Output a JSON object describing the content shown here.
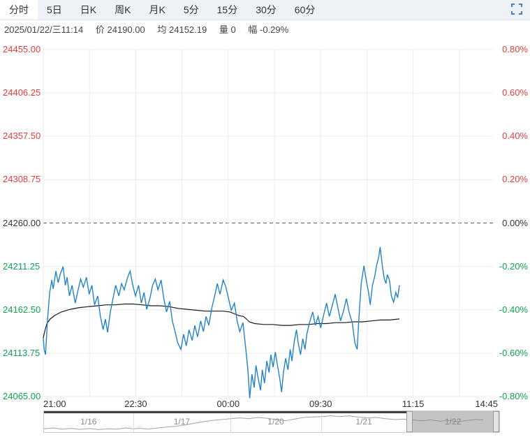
{
  "colors": {
    "up": "#e23e3e",
    "down": "#0fa352",
    "flat": "#333333",
    "price_line": "#2383c4",
    "avg_line": "#1a1a1a",
    "accent_blue": "#4b7cc8"
  },
  "tabs": {
    "items": [
      {
        "label": "分时",
        "name": "tab-time-share",
        "active": true
      },
      {
        "label": "5日",
        "name": "tab-5-day",
        "active": false
      },
      {
        "label": "日K",
        "name": "tab-daily-k",
        "active": false
      },
      {
        "label": "周K",
        "name": "tab-weekly-k",
        "active": false
      },
      {
        "label": "月K",
        "name": "tab-monthly-k",
        "active": false
      },
      {
        "label": "5分",
        "name": "tab-5-min",
        "active": false
      },
      {
        "label": "15分",
        "name": "tab-15-min",
        "active": false
      },
      {
        "label": "30分",
        "name": "tab-30-min",
        "active": false
      },
      {
        "label": "60分",
        "name": "tab-60-min",
        "active": false
      }
    ]
  },
  "info_bar": {
    "datetime": "2025/01/22/三11:14",
    "price_label": "价",
    "price": "24190.00",
    "avg_label": "均",
    "avg": "24152.19",
    "vol_label": "量",
    "vol": "0",
    "chg_label": "幅",
    "chg": "-0.29%"
  },
  "chart_data": {
    "type": "line",
    "title": "分时走势",
    "ylim": [
      24065,
      24455
    ],
    "pct_lim": [
      -0.8,
      0.8
    ],
    "zero_price": 24260,
    "grid": true,
    "left_axis": [
      {
        "label": "24455.00",
        "tone": "up"
      },
      {
        "label": "24406.25",
        "tone": "up"
      },
      {
        "label": "24357.50",
        "tone": "up"
      },
      {
        "label": "24308.75",
        "tone": "up"
      },
      {
        "label": "24260.00",
        "tone": "flat"
      },
      {
        "label": "24211.25",
        "tone": "down"
      },
      {
        "label": "24162.50",
        "tone": "down"
      },
      {
        "label": "24113.75",
        "tone": "down"
      },
      {
        "label": "24065.00",
        "tone": "down"
      }
    ],
    "right_axis": [
      {
        "label": "0.80%",
        "tone": "up"
      },
      {
        "label": "0.60%",
        "tone": "up"
      },
      {
        "label": "0.40%",
        "tone": "up"
      },
      {
        "label": "0.20%",
        "tone": "up"
      },
      {
        "label": "0.00%",
        "tone": "flat"
      },
      {
        "label": "-0.20%",
        "tone": "down"
      },
      {
        "label": "-0.40%",
        "tone": "down"
      },
      {
        "label": "-0.60%",
        "tone": "down"
      },
      {
        "label": "-0.80%",
        "tone": "down"
      }
    ],
    "x_ticks": [
      {
        "label": "21:00",
        "pos": 0.0,
        "align": "left"
      },
      {
        "label": "22:30",
        "pos": 0.2056,
        "align": "center"
      },
      {
        "label": "00:00",
        "pos": 0.4112,
        "align": "center"
      },
      {
        "label": "09:30",
        "pos": 0.6168,
        "align": "center"
      },
      {
        "label": "11:15",
        "pos": 0.8224,
        "align": "center"
      },
      {
        "label": "14:45",
        "pos": 1.0,
        "align": "right"
      }
    ],
    "series": [
      {
        "name": "price",
        "color": "#2383c4",
        "points": [
          [
            0.0,
            24131
          ],
          [
            0.002,
            24118
          ],
          [
            0.005,
            24112
          ],
          [
            0.009,
            24148
          ],
          [
            0.014,
            24181
          ],
          [
            0.019,
            24196
          ],
          [
            0.022,
            24186
          ],
          [
            0.028,
            24206
          ],
          [
            0.033,
            24193
          ],
          [
            0.038,
            24203
          ],
          [
            0.044,
            24211
          ],
          [
            0.049,
            24190
          ],
          [
            0.053,
            24199
          ],
          [
            0.058,
            24178
          ],
          [
            0.064,
            24190
          ],
          [
            0.071,
            24170
          ],
          [
            0.077,
            24184
          ],
          [
            0.083,
            24197
          ],
          [
            0.089,
            24188
          ],
          [
            0.096,
            24199
          ],
          [
            0.102,
            24180
          ],
          [
            0.108,
            24190
          ],
          [
            0.114,
            24168
          ],
          [
            0.121,
            24178
          ],
          [
            0.127,
            24155
          ],
          [
            0.133,
            24140
          ],
          [
            0.138,
            24152
          ],
          [
            0.143,
            24137
          ],
          [
            0.149,
            24160
          ],
          [
            0.155,
            24175
          ],
          [
            0.161,
            24190
          ],
          [
            0.168,
            24178
          ],
          [
            0.174,
            24192
          ],
          [
            0.18,
            24185
          ],
          [
            0.187,
            24198
          ],
          [
            0.193,
            24206
          ],
          [
            0.199,
            24190
          ],
          [
            0.205,
            24178
          ],
          [
            0.212,
            24190
          ],
          [
            0.218,
            24170
          ],
          [
            0.224,
            24182
          ],
          [
            0.23,
            24163
          ],
          [
            0.237,
            24175
          ],
          [
            0.243,
            24190
          ],
          [
            0.249,
            24197
          ],
          [
            0.255,
            24185
          ],
          [
            0.262,
            24196
          ],
          [
            0.268,
            24175
          ],
          [
            0.274,
            24160
          ],
          [
            0.281,
            24172
          ],
          [
            0.287,
            24150
          ],
          [
            0.293,
            24138
          ],
          [
            0.299,
            24125
          ],
          [
            0.306,
            24118
          ],
          [
            0.312,
            24135
          ],
          [
            0.318,
            24122
          ],
          [
            0.324,
            24140
          ],
          [
            0.331,
            24128
          ],
          [
            0.337,
            24145
          ],
          [
            0.343,
            24132
          ],
          [
            0.35,
            24150
          ],
          [
            0.356,
            24138
          ],
          [
            0.362,
            24155
          ],
          [
            0.368,
            24145
          ],
          [
            0.375,
            24165
          ],
          [
            0.381,
            24178
          ],
          [
            0.387,
            24192
          ],
          [
            0.393,
            24180
          ],
          [
            0.4,
            24196
          ],
          [
            0.406,
            24188
          ],
          [
            0.412,
            24175
          ],
          [
            0.418,
            24162
          ],
          [
            0.425,
            24170
          ],
          [
            0.431,
            24150
          ],
          [
            0.437,
            24138
          ],
          [
            0.444,
            24148
          ],
          [
            0.45,
            24120
          ],
          [
            0.455,
            24095
          ],
          [
            0.459,
            24063
          ],
          [
            0.464,
            24090
          ],
          [
            0.469,
            24075
          ],
          [
            0.473,
            24100
          ],
          [
            0.478,
            24085
          ],
          [
            0.483,
            24072
          ],
          [
            0.487,
            24095
          ],
          [
            0.492,
            24080
          ],
          [
            0.497,
            24105
          ],
          [
            0.502,
            24092
          ],
          [
            0.506,
            24112
          ],
          [
            0.511,
            24098
          ],
          [
            0.516,
            24115
          ],
          [
            0.52,
            24102
          ],
          [
            0.525,
            24088
          ],
          [
            0.53,
            24070
          ],
          [
            0.534,
            24092
          ],
          [
            0.539,
            24108
          ],
          [
            0.544,
            24095
          ],
          [
            0.549,
            24118
          ],
          [
            0.553,
            24105
          ],
          [
            0.558,
            24127
          ],
          [
            0.563,
            24140
          ],
          [
            0.567,
            24125
          ],
          [
            0.572,
            24112
          ],
          [
            0.577,
            24130
          ],
          [
            0.582,
            24118
          ],
          [
            0.586,
            24135
          ],
          [
            0.592,
            24148
          ],
          [
            0.599,
            24160
          ],
          [
            0.605,
            24145
          ],
          [
            0.611,
            24155
          ],
          [
            0.617,
            24142
          ],
          [
            0.624,
            24158
          ],
          [
            0.63,
            24170
          ],
          [
            0.636,
            24155
          ],
          [
            0.643,
            24168
          ],
          [
            0.649,
            24180
          ],
          [
            0.655,
            24165
          ],
          [
            0.661,
            24150
          ],
          [
            0.668,
            24162
          ],
          [
            0.674,
            24175
          ],
          [
            0.68,
            24160
          ],
          [
            0.687,
            24148
          ],
          [
            0.693,
            24125
          ],
          [
            0.698,
            24118
          ],
          [
            0.702,
            24155
          ],
          [
            0.707,
            24192
          ],
          [
            0.713,
            24212
          ],
          [
            0.718,
            24196
          ],
          [
            0.723,
            24183
          ],
          [
            0.727,
            24168
          ],
          [
            0.732,
            24190
          ],
          [
            0.737,
            24200
          ],
          [
            0.741,
            24212
          ],
          [
            0.746,
            24222
          ],
          [
            0.749,
            24233
          ],
          [
            0.752,
            24220
          ],
          [
            0.755,
            24208
          ],
          [
            0.758,
            24198
          ],
          [
            0.762,
            24192
          ],
          [
            0.765,
            24202
          ],
          [
            0.77,
            24195
          ],
          [
            0.774,
            24178
          ],
          [
            0.779,
            24171
          ],
          [
            0.784,
            24182
          ],
          [
            0.788,
            24176
          ],
          [
            0.792,
            24190
          ]
        ]
      },
      {
        "name": "average",
        "color": "#1a1a1a",
        "points": [
          [
            0.0,
            24131
          ],
          [
            0.004,
            24140
          ],
          [
            0.008,
            24147
          ],
          [
            0.015,
            24152
          ],
          [
            0.025,
            24156
          ],
          [
            0.04,
            24160
          ],
          [
            0.06,
            24163
          ],
          [
            0.08,
            24165
          ],
          [
            0.1,
            24166
          ],
          [
            0.12,
            24167
          ],
          [
            0.14,
            24168
          ],
          [
            0.16,
            24168
          ],
          [
            0.18,
            24169
          ],
          [
            0.2,
            24169
          ],
          [
            0.22,
            24168
          ],
          [
            0.24,
            24167
          ],
          [
            0.26,
            24167
          ],
          [
            0.28,
            24166
          ],
          [
            0.3,
            24164
          ],
          [
            0.32,
            24163
          ],
          [
            0.34,
            24162
          ],
          [
            0.36,
            24161
          ],
          [
            0.38,
            24161
          ],
          [
            0.4,
            24161
          ],
          [
            0.415,
            24160
          ],
          [
            0.425,
            24158
          ],
          [
            0.435,
            24156
          ],
          [
            0.445,
            24155
          ],
          [
            0.452,
            24152
          ],
          [
            0.458,
            24149
          ],
          [
            0.47,
            24147
          ],
          [
            0.49,
            24146
          ],
          [
            0.51,
            24146
          ],
          [
            0.53,
            24145
          ],
          [
            0.55,
            24145
          ],
          [
            0.57,
            24146
          ],
          [
            0.59,
            24146
          ],
          [
            0.61,
            24147
          ],
          [
            0.63,
            24147
          ],
          [
            0.65,
            24148
          ],
          [
            0.67,
            24148
          ],
          [
            0.69,
            24149
          ],
          [
            0.71,
            24149
          ],
          [
            0.73,
            24150
          ],
          [
            0.75,
            24151
          ],
          [
            0.77,
            24151
          ],
          [
            0.792,
            24152.19
          ]
        ]
      }
    ]
  },
  "navigator": {
    "dates": [
      {
        "label": "1/16"
      },
      {
        "label": "1/17"
      },
      {
        "label": "1/20"
      },
      {
        "label": "1/21"
      },
      {
        "label": "1/22"
      }
    ],
    "boundaries": [
      0,
      0.1957,
      0.4098,
      0.6086,
      0.7966,
      1.0
    ],
    "selected_index": 4,
    "selection": [
      0.7966,
      1.0
    ],
    "sparkline": [
      [
        0.0,
        0.84
      ],
      [
        0.02,
        0.8
      ],
      [
        0.04,
        0.86
      ],
      [
        0.06,
        0.82
      ],
      [
        0.08,
        0.87
      ],
      [
        0.1,
        0.83
      ],
      [
        0.12,
        0.88
      ],
      [
        0.14,
        0.84
      ],
      [
        0.16,
        0.86
      ],
      [
        0.18,
        0.8
      ],
      [
        0.196,
        0.84
      ],
      [
        0.21,
        0.82
      ],
      [
        0.23,
        0.85
      ],
      [
        0.25,
        0.8
      ],
      [
        0.27,
        0.76
      ],
      [
        0.29,
        0.72
      ],
      [
        0.31,
        0.66
      ],
      [
        0.33,
        0.58
      ],
      [
        0.35,
        0.5
      ],
      [
        0.37,
        0.44
      ],
      [
        0.39,
        0.4
      ],
      [
        0.41,
        0.36
      ],
      [
        0.43,
        0.32
      ],
      [
        0.45,
        0.36
      ],
      [
        0.47,
        0.3
      ],
      [
        0.49,
        0.34
      ],
      [
        0.51,
        0.4
      ],
      [
        0.53,
        0.46
      ],
      [
        0.55,
        0.38
      ],
      [
        0.57,
        0.3
      ],
      [
        0.59,
        0.28
      ],
      [
        0.61,
        0.26
      ],
      [
        0.63,
        0.22
      ],
      [
        0.65,
        0.26
      ],
      [
        0.67,
        0.22
      ],
      [
        0.69,
        0.28
      ],
      [
        0.71,
        0.32
      ],
      [
        0.73,
        0.3
      ],
      [
        0.75,
        0.36
      ],
      [
        0.77,
        0.4
      ],
      [
        0.79,
        0.38
      ],
      [
        0.81,
        0.42
      ],
      [
        0.83,
        0.46
      ],
      [
        0.85,
        0.42
      ],
      [
        0.87,
        0.48
      ],
      [
        0.89,
        0.44
      ],
      [
        0.91,
        0.5
      ],
      [
        0.93,
        0.44
      ],
      [
        0.95,
        0.4
      ],
      [
        0.965,
        0.42
      ]
    ]
  }
}
